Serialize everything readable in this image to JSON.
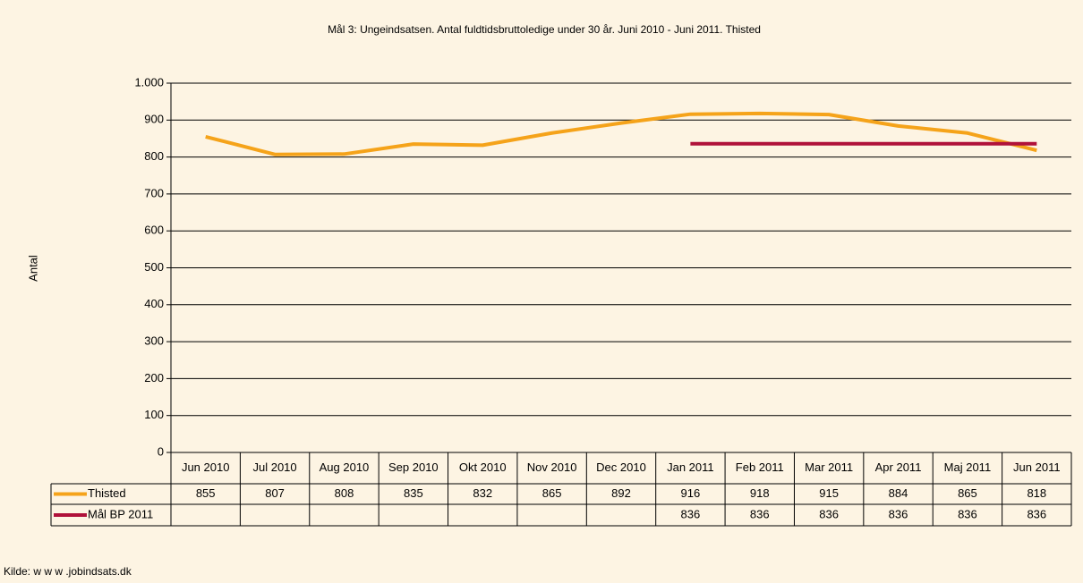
{
  "chart_data": {
    "type": "line",
    "title": "Mål 3: Ungeindsatsen. Antal fuldtidsbruttoledige under 30 år. Juni 2010 - Juni 2011. Thisted",
    "y_label": "Antal",
    "source": "Kilde: w w w .jobindsats.dk",
    "categories": [
      "Jun 2010",
      "Jul 2010",
      "Aug 2010",
      "Sep 2010",
      "Okt 2010",
      "Nov 2010",
      "Dec 2010",
      "Jan 2011",
      "Feb 2011",
      "Mar 2011",
      "Apr 2011",
      "Maj 2011",
      "Jun 2011"
    ],
    "series": [
      {
        "name": "Thisted",
        "color": "#f5a31a",
        "values": [
          855,
          807,
          808,
          835,
          832,
          865,
          892,
          916,
          918,
          915,
          884,
          865,
          818
        ]
      },
      {
        "name": "Mål BP 2011",
        "color": "#b0113a",
        "values": [
          null,
          null,
          null,
          null,
          null,
          null,
          null,
          836,
          836,
          836,
          836,
          836,
          836
        ]
      }
    ],
    "ylim": [
      0,
      1000
    ],
    "yticks": [
      0,
      100,
      200,
      300,
      400,
      500,
      600,
      700,
      800,
      900,
      {
        "value": 1000,
        "label": "1.000"
      }
    ],
    "grid": true
  }
}
